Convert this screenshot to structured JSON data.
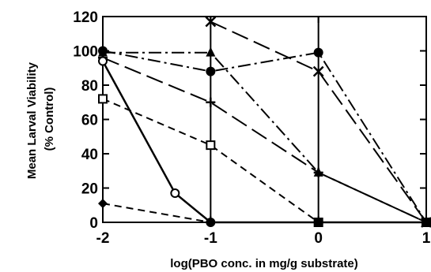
{
  "chart_data": {
    "type": "line",
    "title": "",
    "xlabel": "log(PBO conc. in mg/g substrate)",
    "ylabel": [
      "Mean Larval Viability",
      "(% Control)"
    ],
    "xlim": [
      -2,
      1
    ],
    "ylim": [
      0,
      120
    ],
    "xticks": [
      "-2",
      "-1",
      "0",
      "1"
    ],
    "yticks": [
      "0",
      "20",
      "40",
      "60",
      "80",
      "100",
      "120"
    ],
    "xtick_values": [
      -2,
      -1,
      0,
      1
    ],
    "ytick_values": [
      0,
      20,
      40,
      60,
      80,
      100,
      120
    ],
    "grid": "vertical lines at x ticks",
    "legend": "none",
    "series": [
      {
        "marker": "filled-circle",
        "dash": "dash-dot",
        "points": [
          [
            -2,
            100
          ],
          [
            -1,
            88
          ],
          [
            0,
            99
          ],
          [
            1,
            0
          ]
        ]
      },
      {
        "marker": "x",
        "dash": "long-dash",
        "points": [
          [
            -1,
            117
          ],
          [
            0,
            88
          ],
          [
            1,
            0
          ]
        ]
      },
      {
        "marker": "filled-triangle",
        "dash": "dash-dot",
        "points": [
          [
            -2,
            99
          ],
          [
            -1,
            99
          ],
          [
            0,
            29
          ],
          [
            1,
            0
          ]
        ]
      },
      {
        "marker": "plus",
        "dash": "long-dash",
        "points": [
          [
            -2,
            96
          ],
          [
            -1,
            70
          ],
          [
            0,
            29
          ],
          [
            1,
            0
          ]
        ]
      },
      {
        "marker": "open-square",
        "dash": "dash",
        "points": [
          [
            -2,
            72
          ],
          [
            -1,
            45
          ],
          [
            0,
            0
          ],
          [
            1,
            0
          ]
        ]
      },
      {
        "marker": "open-circle",
        "dash": "solid",
        "points": [
          [
            -2,
            94
          ],
          [
            -1.33,
            17
          ],
          [
            -1,
            0
          ],
          [
            0,
            0
          ],
          [
            1,
            0
          ]
        ]
      },
      {
        "marker": "filled-diamond",
        "dash": "dash",
        "points": [
          [
            -2,
            11
          ],
          [
            -1,
            0
          ],
          [
            0,
            0
          ],
          [
            1,
            0
          ]
        ]
      }
    ]
  }
}
